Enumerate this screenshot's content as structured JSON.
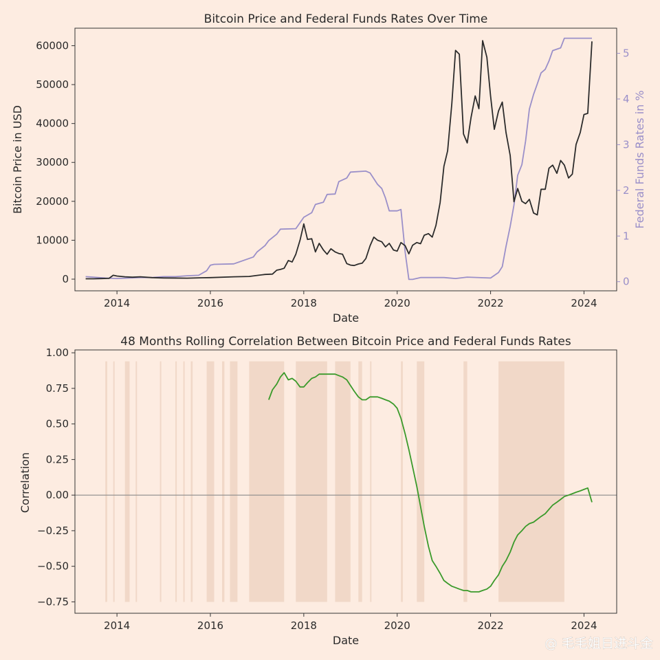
{
  "colors": {
    "background": "#fdece1",
    "btc_line": "#2b2b2b",
    "fed_line": "#9a8fc9",
    "corr_line": "#3a9a2a",
    "shade": "#f1d8c8",
    "zero_line": "#8a8a8a"
  },
  "watermark": "@ 毛毛姐日进斗金",
  "chart_data": [
    {
      "type": "line",
      "title": "Bitcoin Price and Federal Funds Rates Over Time",
      "xlabel": "Date",
      "ylabel": "Bitcoin Price in USD",
      "ylabel_right": "Federal Funds Rates in %",
      "xlim": [
        2013.1,
        2024.7
      ],
      "ylim": [
        -3000,
        64500
      ],
      "ylim_right": [
        -0.2,
        5.55
      ],
      "x_ticks": [
        2014,
        2016,
        2018,
        2020,
        2022,
        2024
      ],
      "y_ticks": [
        0,
        10000,
        20000,
        30000,
        40000,
        50000,
        60000
      ],
      "y_ticks_right": [
        0,
        1,
        2,
        3,
        4,
        5
      ],
      "grid": false,
      "series": [
        {
          "name": "Bitcoin Price",
          "axis": "left",
          "x": [
            2013.33,
            2013.5,
            2013.67,
            2013.83,
            2013.92,
            2014.0,
            2014.17,
            2014.33,
            2014.5,
            2014.75,
            2015.0,
            2015.5,
            2015.83,
            2016.0,
            2016.5,
            2016.83,
            2017.0,
            2017.17,
            2017.33,
            2017.42,
            2017.5,
            2017.58,
            2017.67,
            2017.75,
            2017.83,
            2017.92,
            2018.0,
            2018.08,
            2018.17,
            2018.25,
            2018.33,
            2018.42,
            2018.5,
            2018.58,
            2018.67,
            2018.75,
            2018.83,
            2018.92,
            2019.0,
            2019.08,
            2019.17,
            2019.25,
            2019.33,
            2019.42,
            2019.5,
            2019.58,
            2019.67,
            2019.75,
            2019.83,
            2019.92,
            2020.0,
            2020.08,
            2020.17,
            2020.25,
            2020.33,
            2020.42,
            2020.5,
            2020.58,
            2020.67,
            2020.75,
            2020.83,
            2020.92,
            2021.0,
            2021.08,
            2021.17,
            2021.25,
            2021.33,
            2021.42,
            2021.5,
            2021.58,
            2021.67,
            2021.75,
            2021.83,
            2021.92,
            2022.0,
            2022.08,
            2022.17,
            2022.25,
            2022.33,
            2022.42,
            2022.5,
            2022.58,
            2022.67,
            2022.75,
            2022.83,
            2022.92,
            2023.0,
            2023.08,
            2023.17,
            2023.25,
            2023.33,
            2023.42,
            2023.5,
            2023.58,
            2023.67,
            2023.75,
            2023.83,
            2023.92,
            2024.0,
            2024.08,
            2024.17
          ],
          "values": [
            100,
            100,
            150,
            200,
            1000,
            800,
            600,
            500,
            600,
            400,
            300,
            250,
            350,
            400,
            600,
            700,
            950,
            1200,
            1300,
            2300,
            2500,
            2800,
            4800,
            4400,
            6400,
            10000,
            14200,
            10200,
            10400,
            7000,
            9200,
            7500,
            6400,
            7800,
            7000,
            6600,
            6400,
            4000,
            3600,
            3500,
            3900,
            4100,
            5300,
            8600,
            10800,
            10000,
            9600,
            8300,
            9200,
            7500,
            7200,
            9400,
            8600,
            6500,
            8700,
            9400,
            9100,
            11300,
            11700,
            10800,
            13800,
            19700,
            29000,
            33000,
            45100,
            58800,
            57800,
            37300,
            35000,
            41500,
            47100,
            43800,
            61300,
            57000,
            47000,
            38500,
            43200,
            45500,
            37700,
            31800,
            19900,
            23300,
            20000,
            19400,
            20500,
            17000,
            16500,
            23100,
            23100,
            28500,
            29300,
            27200,
            30500,
            29300,
            26000,
            27000,
            34600,
            37700,
            42300,
            42600,
            61100
          ]
        },
        {
          "name": "Federal Funds Rates",
          "axis": "right",
          "x": [
            2013.33,
            2013.75,
            2014.0,
            2014.5,
            2014.75,
            2015.0,
            2015.25,
            2015.5,
            2015.75,
            2015.92,
            2016.0,
            2016.08,
            2016.5,
            2016.92,
            2017.0,
            2017.17,
            2017.25,
            2017.42,
            2017.5,
            2017.83,
            2018.0,
            2018.17,
            2018.25,
            2018.42,
            2018.5,
            2018.67,
            2018.75,
            2018.92,
            2019.0,
            2019.33,
            2019.42,
            2019.58,
            2019.67,
            2019.75,
            2019.83,
            2020.0,
            2020.08,
            2020.17,
            2020.25,
            2020.33,
            2020.5,
            2021.0,
            2021.25,
            2021.5,
            2022.0,
            2022.17,
            2022.25,
            2022.33,
            2022.42,
            2022.5,
            2022.58,
            2022.67,
            2022.75,
            2022.83,
            2022.92,
            2023.0,
            2023.08,
            2023.17,
            2023.25,
            2023.33,
            2023.5,
            2023.58,
            2024.17
          ],
          "values": [
            0.11,
            0.08,
            0.07,
            0.09,
            0.09,
            0.11,
            0.11,
            0.13,
            0.14,
            0.24,
            0.36,
            0.38,
            0.39,
            0.54,
            0.65,
            0.79,
            0.9,
            1.04,
            1.15,
            1.16,
            1.41,
            1.51,
            1.69,
            1.74,
            1.91,
            1.92,
            2.19,
            2.27,
            2.4,
            2.42,
            2.38,
            2.13,
            2.04,
            1.83,
            1.55,
            1.55,
            1.58,
            0.65,
            0.05,
            0.05,
            0.09,
            0.09,
            0.07,
            0.1,
            0.08,
            0.2,
            0.33,
            0.77,
            1.21,
            1.68,
            2.33,
            2.56,
            3.08,
            3.78,
            4.1,
            4.33,
            4.57,
            4.65,
            4.83,
            5.06,
            5.12,
            5.33,
            5.33
          ]
        }
      ]
    },
    {
      "type": "line",
      "title": "48 Months Rolling Correlation Between Bitcoin Price and Federal Funds Rates",
      "xlabel": "Date",
      "ylabel": "Correlation",
      "xlim": [
        2013.1,
        2024.7
      ],
      "ylim": [
        -0.83,
        1.02
      ],
      "x_ticks": [
        2014,
        2016,
        2018,
        2020,
        2022,
        2024
      ],
      "y_ticks": [
        -0.75,
        -0.5,
        -0.25,
        0.0,
        0.25,
        0.5,
        0.75,
        1.0
      ],
      "reference_line_y": 0,
      "grid": false,
      "shaded_x_ranges": [
        [
          2013.75,
          2013.79
        ],
        [
          2013.92,
          2013.95
        ],
        [
          2014.17,
          2014.27
        ],
        [
          2014.4,
          2014.43
        ],
        [
          2014.92,
          2014.95
        ],
        [
          2015.25,
          2015.28
        ],
        [
          2015.42,
          2015.45
        ],
        [
          2015.58,
          2015.62
        ],
        [
          2015.92,
          2016.08
        ],
        [
          2016.25,
          2016.3
        ],
        [
          2016.42,
          2016.58
        ],
        [
          2016.83,
          2017.58
        ],
        [
          2017.83,
          2018.5
        ],
        [
          2018.67,
          2019.0
        ],
        [
          2019.17,
          2019.25
        ],
        [
          2019.42,
          2019.45
        ],
        [
          2020.08,
          2020.12
        ],
        [
          2020.42,
          2020.58
        ],
        [
          2021.42,
          2021.5
        ],
        [
          2022.17,
          2023.58
        ]
      ],
      "series": [
        {
          "name": "Rolling Correlation",
          "x": [
            2017.25,
            2017.33,
            2017.42,
            2017.5,
            2017.58,
            2017.67,
            2017.75,
            2017.83,
            2017.92,
            2018.0,
            2018.08,
            2018.17,
            2018.25,
            2018.33,
            2018.42,
            2018.5,
            2018.58,
            2018.67,
            2018.75,
            2018.83,
            2018.92,
            2019.0,
            2019.08,
            2019.17,
            2019.25,
            2019.33,
            2019.42,
            2019.5,
            2019.58,
            2019.67,
            2019.75,
            2019.83,
            2019.92,
            2020.0,
            2020.08,
            2020.17,
            2020.25,
            2020.33,
            2020.42,
            2020.5,
            2020.58,
            2020.67,
            2020.75,
            2020.83,
            2020.92,
            2021.0,
            2021.08,
            2021.17,
            2021.25,
            2021.33,
            2021.42,
            2021.5,
            2021.58,
            2021.67,
            2021.75,
            2021.83,
            2021.92,
            2022.0,
            2022.08,
            2022.17,
            2022.25,
            2022.33,
            2022.42,
            2022.5,
            2022.58,
            2022.67,
            2022.75,
            2022.83,
            2022.92,
            2023.0,
            2023.08,
            2023.17,
            2023.25,
            2023.33,
            2023.42,
            2023.5,
            2023.58,
            2023.67,
            2023.75,
            2023.83,
            2023.92,
            2024.0,
            2024.08,
            2024.17
          ],
          "values": [
            0.67,
            0.74,
            0.78,
            0.83,
            0.86,
            0.81,
            0.82,
            0.8,
            0.76,
            0.76,
            0.79,
            0.82,
            0.83,
            0.85,
            0.85,
            0.85,
            0.85,
            0.85,
            0.84,
            0.83,
            0.81,
            0.77,
            0.73,
            0.69,
            0.67,
            0.67,
            0.69,
            0.69,
            0.69,
            0.68,
            0.67,
            0.66,
            0.64,
            0.61,
            0.54,
            0.43,
            0.32,
            0.2,
            0.06,
            -0.08,
            -0.22,
            -0.36,
            -0.46,
            -0.5,
            -0.55,
            -0.6,
            -0.62,
            -0.64,
            -0.65,
            -0.66,
            -0.67,
            -0.67,
            -0.68,
            -0.68,
            -0.68,
            -0.67,
            -0.66,
            -0.64,
            -0.6,
            -0.56,
            -0.5,
            -0.46,
            -0.4,
            -0.33,
            -0.28,
            -0.25,
            -0.22,
            -0.2,
            -0.19,
            -0.17,
            -0.15,
            -0.13,
            -0.1,
            -0.07,
            -0.05,
            -0.03,
            -0.01,
            0.0,
            0.01,
            0.02,
            0.03,
            0.04,
            0.05,
            -0.05
          ]
        }
      ]
    }
  ]
}
